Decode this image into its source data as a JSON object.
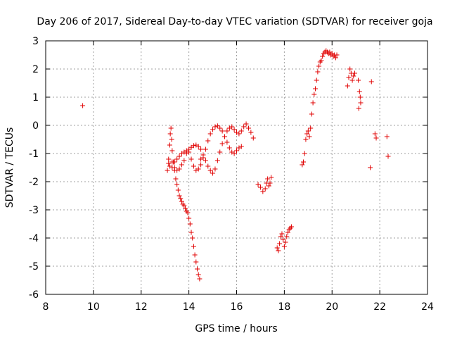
{
  "chart_data": {
    "type": "scatter",
    "title": "Day 206 of 2017, Sidereal Day-to-day VTEC variation (SDTVAR) for receiver goja",
    "xlabel": "GPS time / hours",
    "ylabel": "SDTVAR / TECUs",
    "xlim": [
      8,
      24
    ],
    "ylim": [
      -6,
      3
    ],
    "xticks": [
      8,
      10,
      12,
      14,
      16,
      18,
      20,
      22,
      24
    ],
    "yticks": [
      -6,
      -5,
      -4,
      -3,
      -2,
      -1,
      0,
      1,
      2,
      3
    ],
    "xtick_labels": [
      "8",
      "10",
      "12",
      "14",
      "16",
      "18",
      "20",
      "22",
      "24"
    ],
    "ytick_labels": [
      "-6",
      "-5",
      "-4",
      "-3",
      "-2",
      "-1",
      "0",
      "1",
      "2",
      "3"
    ],
    "grid": true,
    "marker": "+",
    "marker_color": "#e00000",
    "series": [
      {
        "name": "goja",
        "x": [
          9.55,
          13.1,
          13.15,
          13.2,
          13.22,
          13.25,
          13.28,
          13.3,
          13.35,
          13.4,
          13.45,
          13.5,
          13.55,
          13.6,
          13.65,
          13.7,
          13.75,
          13.8,
          13.85,
          13.9,
          13.95,
          14.0,
          14.05,
          14.1,
          14.15,
          14.2,
          14.25,
          14.3,
          14.35,
          14.4,
          14.45,
          14.5,
          13.15,
          13.2,
          13.3,
          13.4,
          13.5,
          13.6,
          13.7,
          13.8,
          13.9,
          14.0,
          14.1,
          14.2,
          14.3,
          14.4,
          14.5,
          14.6,
          14.7,
          14.8,
          14.9,
          15.0,
          15.1,
          15.2,
          15.3,
          15.4,
          15.5,
          15.6,
          15.7,
          15.8,
          15.9,
          16.0,
          16.1,
          16.2,
          16.3,
          16.4,
          16.5,
          16.6,
          16.7,
          13.3,
          13.4,
          13.5,
          13.6,
          13.7,
          13.8,
          13.9,
          14.0,
          14.1,
          14.2,
          14.3,
          14.4,
          14.5,
          14.6,
          14.7,
          14.8,
          14.9,
          15.0,
          15.1,
          15.2,
          15.3,
          15.4,
          15.5,
          15.6,
          15.7,
          15.8,
          15.9,
          16.0,
          16.1,
          16.2,
          16.9,
          17.0,
          17.1,
          17.2,
          17.25,
          17.3,
          17.35,
          17.4,
          17.45,
          17.7,
          17.75,
          17.8,
          17.85,
          17.9,
          17.95,
          18.0,
          18.05,
          18.1,
          18.15,
          18.2,
          18.25,
          18.3,
          18.75,
          18.8,
          18.85,
          18.9,
          18.95,
          19.0,
          19.05,
          19.1,
          19.15,
          19.2,
          19.25,
          19.3,
          19.35,
          19.4,
          19.45,
          19.5,
          19.55,
          19.6,
          19.65,
          19.7,
          19.75,
          19.8,
          19.85,
          19.9,
          19.95,
          20.0,
          20.05,
          20.1,
          20.15,
          20.2,
          20.65,
          20.7,
          20.75,
          20.8,
          20.85,
          20.9,
          20.95,
          21.1,
          21.15,
          21.2,
          21.12,
          21.18,
          21.6,
          21.65,
          21.8,
          21.85,
          22.3,
          22.35
        ],
        "y": [
          0.7,
          -1.6,
          -1.2,
          -0.7,
          -0.3,
          -0.1,
          -0.5,
          -0.9,
          -1.3,
          -1.6,
          -1.9,
          -2.1,
          -2.3,
          -2.5,
          -2.6,
          -2.7,
          -2.8,
          -2.85,
          -2.95,
          -3.05,
          -3.1,
          -3.3,
          -3.5,
          -3.8,
          -4.0,
          -4.3,
          -4.6,
          -4.85,
          -5.1,
          -5.3,
          -5.45,
          -1.2,
          -1.35,
          -1.45,
          -1.5,
          -1.3,
          -1.2,
          -1.1,
          -1.0,
          -0.95,
          -0.9,
          -0.85,
          -0.78,
          -0.72,
          -0.7,
          -0.75,
          -0.85,
          -1.05,
          -1.25,
          -1.45,
          -1.6,
          -1.7,
          -1.55,
          -1.25,
          -0.95,
          -0.65,
          -0.4,
          -0.2,
          -0.1,
          -0.05,
          -0.15,
          -0.25,
          -0.3,
          -0.2,
          -0.05,
          0.05,
          -0.1,
          -0.25,
          -0.45,
          -1.3,
          -1.5,
          -1.6,
          -1.55,
          -1.4,
          -1.25,
          -1.0,
          -0.95,
          -1.2,
          -1.45,
          -1.6,
          -1.55,
          -1.4,
          -1.15,
          -0.85,
          -0.55,
          -0.3,
          -0.15,
          -0.05,
          -0.02,
          -0.1,
          -0.2,
          -0.4,
          -0.6,
          -0.8,
          -0.95,
          -1.0,
          -0.9,
          -0.8,
          -0.75,
          -2.1,
          -2.2,
          -2.35,
          -2.25,
          -2.05,
          -1.9,
          -2.15,
          -2.05,
          -1.85,
          -4.35,
          -4.45,
          -4.2,
          -3.95,
          -3.85,
          -4.05,
          -4.3,
          -4.15,
          -3.95,
          -3.8,
          -3.7,
          -3.65,
          -3.6,
          -1.4,
          -1.3,
          -1.0,
          -0.5,
          -0.3,
          -0.2,
          -0.4,
          -0.1,
          0.4,
          0.8,
          1.1,
          1.3,
          1.6,
          1.9,
          2.1,
          2.25,
          2.3,
          2.45,
          2.55,
          2.6,
          2.65,
          2.6,
          2.55,
          2.6,
          2.5,
          2.55,
          2.45,
          2.5,
          2.4,
          2.5,
          1.4,
          1.7,
          2.0,
          1.85,
          1.6,
          1.75,
          1.85,
          1.6,
          1.2,
          0.8,
          0.6,
          1.0,
          -1.5,
          1.55,
          -0.3,
          -0.45,
          -0.4,
          -1.1
        ]
      }
    ]
  }
}
